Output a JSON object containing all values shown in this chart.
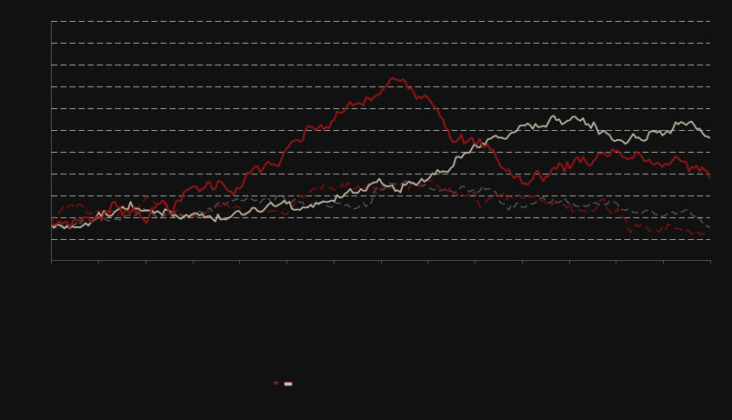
{
  "background_color": "#111111",
  "plot_bg_color": "#111111",
  "grid_color": "#ffffff",
  "n_points": 250,
  "line1_color": "#555555",
  "line2_color": "#7a1010",
  "line3_color": "#8b1515",
  "line4_color": "#c8c4ae",
  "ylim": [
    -0.08,
    0.45
  ],
  "xlim": [
    0,
    249
  ]
}
